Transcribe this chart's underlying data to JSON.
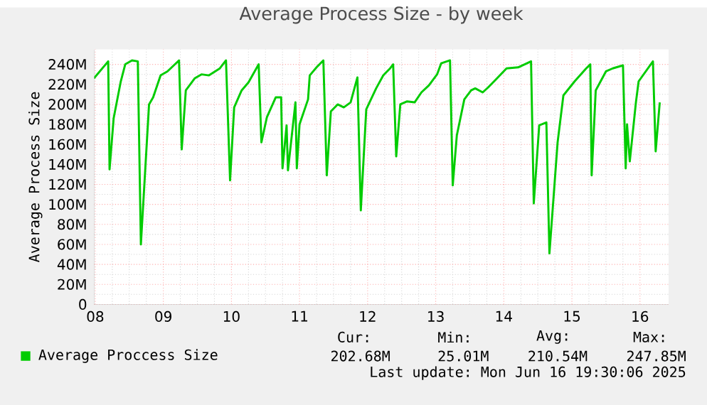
{
  "chart_data": {
    "type": "line",
    "title": "Average Process Size - by week",
    "ylabel": "Average Process Size",
    "x": [
      7.98,
      8.19,
      8.21,
      8.27,
      8.375,
      8.44,
      8.54,
      8.625,
      8.67,
      8.79,
      8.85,
      8.96,
      9.06,
      9.23,
      9.27,
      9.33,
      9.46,
      9.56,
      9.67,
      9.83,
      9.92,
      9.98,
      10.04,
      10.15,
      10.25,
      10.4,
      10.44,
      10.52,
      10.65,
      10.73,
      10.75,
      10.81,
      10.83,
      10.94,
      10.96,
      11.0,
      11.125,
      11.15,
      11.25,
      11.35,
      11.4,
      11.46,
      11.56,
      11.65,
      11.75,
      11.85,
      11.9,
      11.98,
      12.125,
      12.23,
      12.33,
      12.375,
      12.42,
      12.48,
      12.58,
      12.69,
      12.79,
      12.9,
      13.02,
      13.08,
      13.21,
      13.25,
      13.31,
      13.42,
      13.52,
      13.58,
      13.69,
      13.77,
      13.9,
      14.04,
      14.21,
      14.4,
      14.44,
      14.52,
      14.625,
      14.67,
      14.79,
      14.875,
      15.04,
      15.21,
      15.27,
      15.29,
      15.35,
      15.5,
      15.6,
      15.75,
      15.79,
      15.81,
      15.85,
      15.94,
      15.98,
      16.19,
      16.23,
      16.29
    ],
    "series": [
      {
        "name": "Average Proccess Size",
        "color": "#00cc00",
        "values": [
          226,
          243,
          135,
          186,
          223,
          240,
          244,
          243,
          60,
          200,
          207,
          229,
          233,
          244,
          155,
          214,
          226,
          230,
          229,
          236,
          244,
          124,
          197,
          214,
          222,
          240,
          162,
          187,
          207,
          207,
          136,
          179,
          134,
          202,
          136,
          180,
          205,
          229,
          237,
          244,
          129,
          193,
          200,
          197,
          202,
          227,
          94,
          195,
          216,
          229,
          236,
          240,
          148,
          200,
          203,
          202,
          212,
          219,
          230,
          241,
          244,
          119,
          169,
          205,
          214,
          216,
          212,
          217,
          226,
          236,
          237,
          243,
          101,
          179,
          182,
          51,
          162,
          209,
          223,
          236,
          240,
          129,
          214,
          233,
          236,
          239,
          136,
          180,
          143,
          202,
          223,
          243,
          153,
          202
        ]
      }
    ],
    "xlim": [
      7.98,
      16.42
    ],
    "ylim": [
      0,
      255
    ],
    "xticks": [
      {
        "value": 8,
        "label": "08"
      },
      {
        "value": 9,
        "label": "09"
      },
      {
        "value": 10,
        "label": "10"
      },
      {
        "value": 11,
        "label": "11"
      },
      {
        "value": 12,
        "label": "12"
      },
      {
        "value": 13,
        "label": "13"
      },
      {
        "value": 14,
        "label": "14"
      },
      {
        "value": 15,
        "label": "15"
      },
      {
        "value": 16,
        "label": "16"
      }
    ],
    "yticks": [
      0,
      {
        "value": 20,
        "label": "20M"
      },
      {
        "value": 40,
        "label": "40M"
      },
      {
        "value": 60,
        "label": "60M"
      },
      {
        "value": 80,
        "label": "80M"
      },
      {
        "value": 100,
        "label": "100M"
      },
      {
        "value": 120,
        "label": "120M"
      },
      {
        "value": 140,
        "label": "140M"
      },
      {
        "value": 160,
        "label": "160M"
      },
      {
        "value": 180,
        "label": "180M"
      },
      {
        "value": 200,
        "label": "200M"
      },
      {
        "value": 220,
        "label": "220M"
      },
      {
        "value": 240,
        "label": "240M"
      }
    ],
    "grid": true,
    "legend": "bottom",
    "annotations": [
      "Cur:",
      "Min:",
      "Avg:",
      "Max:",
      "202.68M",
      "25.01M",
      "210.54M",
      "247.85M",
      "Last update: Mon Jun 16 19:30:06 2025"
    ]
  }
}
